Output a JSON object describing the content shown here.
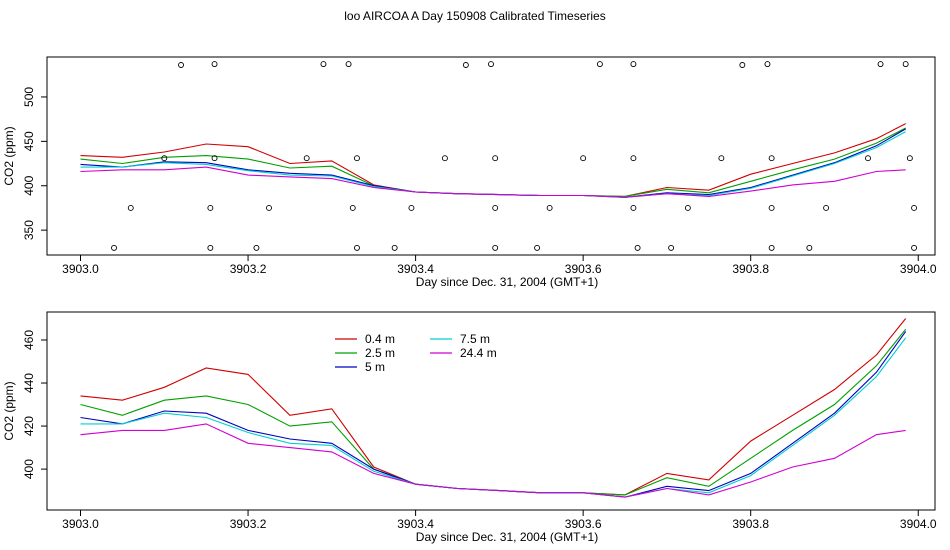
{
  "title": "loo AIRCOA A  Day 150908  Calibrated Timeseries",
  "chart_data": [
    {
      "type": "line",
      "xlabel": "Day since Dec. 31, 2004 (GMT+1)",
      "ylabel": "CO2 (ppm)",
      "xlim": [
        3902.96,
        3904.02
      ],
      "ylim": [
        322,
        545
      ],
      "xticks": [
        3903.0,
        3903.2,
        3903.4,
        3903.6,
        3903.8,
        3904.0
      ],
      "xtick_labels": [
        "3903.0",
        "3903.2",
        "3903.4",
        "3903.6",
        "3903.8",
        "3904.0"
      ],
      "yticks": [
        350,
        400,
        450,
        500
      ],
      "ytick_labels": [
        "350",
        "400",
        "450",
        "500"
      ],
      "series_ref": "lines",
      "points": {
        "marker": "open-circle",
        "x": [
          3903.12,
          3903.16,
          3903.29,
          3903.32,
          3903.46,
          3903.49,
          3903.62,
          3903.66,
          3903.79,
          3903.82,
          3903.955,
          3903.985,
          3903.1,
          3903.16,
          3903.27,
          3903.33,
          3903.435,
          3903.495,
          3903.6,
          3903.66,
          3903.765,
          3903.825,
          3903.94,
          3903.99,
          3903.06,
          3903.155,
          3903.225,
          3903.325,
          3903.395,
          3903.495,
          3903.56,
          3903.66,
          3903.725,
          3903.825,
          3903.89,
          3903.995,
          3903.04,
          3903.155,
          3903.21,
          3903.33,
          3903.375,
          3903.495,
          3903.545,
          3903.665,
          3903.705,
          3903.825,
          3903.87,
          3903.995
        ],
        "y": [
          536,
          537,
          537,
          537,
          536,
          537,
          537,
          537,
          536,
          537,
          537,
          537,
          431,
          431,
          431,
          431,
          431,
          431,
          431,
          431,
          431,
          431,
          431,
          431,
          375,
          375,
          375,
          375,
          375,
          375,
          375,
          375,
          375,
          375,
          375,
          375,
          330,
          330,
          330,
          330,
          330,
          330,
          330,
          330,
          330,
          330,
          330,
          330
        ]
      }
    },
    {
      "type": "line",
      "xlabel": "Day since Dec. 31, 2004 (GMT+1)",
      "ylabel": "CO2 (ppm)",
      "xlim": [
        3902.96,
        3904.02
      ],
      "ylim": [
        381,
        473
      ],
      "xticks": [
        3903.0,
        3903.2,
        3903.4,
        3903.6,
        3903.8,
        3904.0
      ],
      "xtick_labels": [
        "3903.0",
        "3903.2",
        "3903.4",
        "3903.6",
        "3903.8",
        "3904.0"
      ],
      "yticks": [
        400,
        420,
        440,
        460
      ],
      "ytick_labels": [
        "400",
        "420",
        "440",
        "460"
      ],
      "legend": {
        "placement": "top-center-left",
        "ncol": 2
      },
      "series_ref": "lines"
    }
  ],
  "lines": {
    "x": [
      3903.0,
      3903.05,
      3903.1,
      3903.15,
      3903.2,
      3903.25,
      3903.3,
      3903.35,
      3903.4,
      3903.45,
      3903.5,
      3903.55,
      3903.6,
      3903.65,
      3903.7,
      3903.75,
      3903.8,
      3903.85,
      3903.9,
      3903.95,
      3903.985
    ],
    "series": [
      {
        "name": "0.4 m",
        "color": "#d00000",
        "values": [
          434,
          432,
          438,
          447,
          444,
          425,
          428,
          401,
          393,
          391,
          390,
          389,
          389,
          388,
          398,
          395,
          413,
          425,
          437,
          453,
          470
        ]
      },
      {
        "name": "2.5 m",
        "color": "#00a000",
        "values": [
          430,
          425,
          432,
          434,
          430,
          420,
          422,
          400,
          393,
          391,
          390,
          389,
          389,
          388,
          396,
          392,
          405,
          418,
          430,
          448,
          465
        ]
      },
      {
        "name": "5 m",
        "color": "#0000c0",
        "values": [
          424,
          421,
          427,
          426,
          418,
          414,
          412,
          400,
          393,
          391,
          390,
          389,
          389,
          387,
          392,
          390,
          398,
          412,
          426,
          445,
          464
        ]
      },
      {
        "name": "7.5 m",
        "color": "#00d0d0",
        "values": [
          421,
          421,
          426,
          424,
          417,
          412,
          411,
          399,
          393,
          391,
          390,
          389,
          389,
          387,
          391,
          389,
          397,
          411,
          425,
          443,
          461
        ]
      },
      {
        "name": "24.4 m",
        "color": "#d000d0",
        "values": [
          416,
          418,
          418,
          421,
          412,
          410,
          408,
          398,
          393,
          391,
          390,
          389,
          389,
          387,
          391,
          388,
          394,
          401,
          405,
          416,
          418
        ]
      }
    ]
  }
}
